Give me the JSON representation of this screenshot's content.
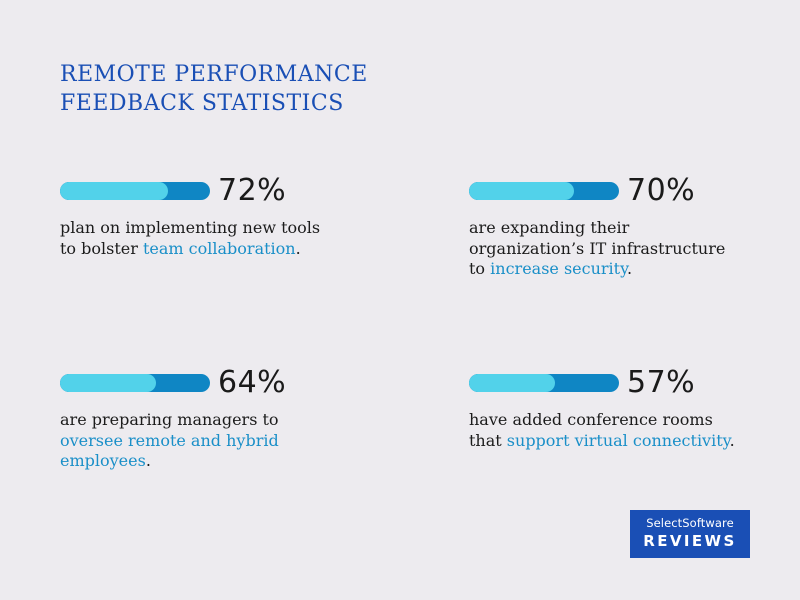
{
  "title": {
    "line1": "REMOTE PERFORMANCE",
    "line2": "FEEDBACK STATISTICS"
  },
  "stats": [
    {
      "percent_label": "72%",
      "fill_percent": 72,
      "text_before": "plan on implementing new tools to bolster ",
      "highlight": "team collaboration",
      "text_after": "."
    },
    {
      "percent_label": "70%",
      "fill_percent": 70,
      "text_before": "are expanding their organization’s IT infrastructure to ",
      "highlight": "increase security",
      "text_after": "."
    },
    {
      "percent_label": "64%",
      "fill_percent": 64,
      "text_before": "are preparing managers to ",
      "highlight": "oversee remote and hybrid employees",
      "text_after": "."
    },
    {
      "percent_label": "57%",
      "fill_percent": 57,
      "text_before": "have added conference rooms that ",
      "highlight": "support virtual connectivity",
      "text_after": "."
    }
  ],
  "logo": {
    "top": "SelectSoftware",
    "bottom": "REVIEWS"
  },
  "colors": {
    "background": "#edebef",
    "title": "#1a4fb5",
    "bar_track": "#0f86c4",
    "bar_fill": "#52d2ea",
    "highlight": "#1a8fc8",
    "logo_bg": "#1a4fb5"
  }
}
